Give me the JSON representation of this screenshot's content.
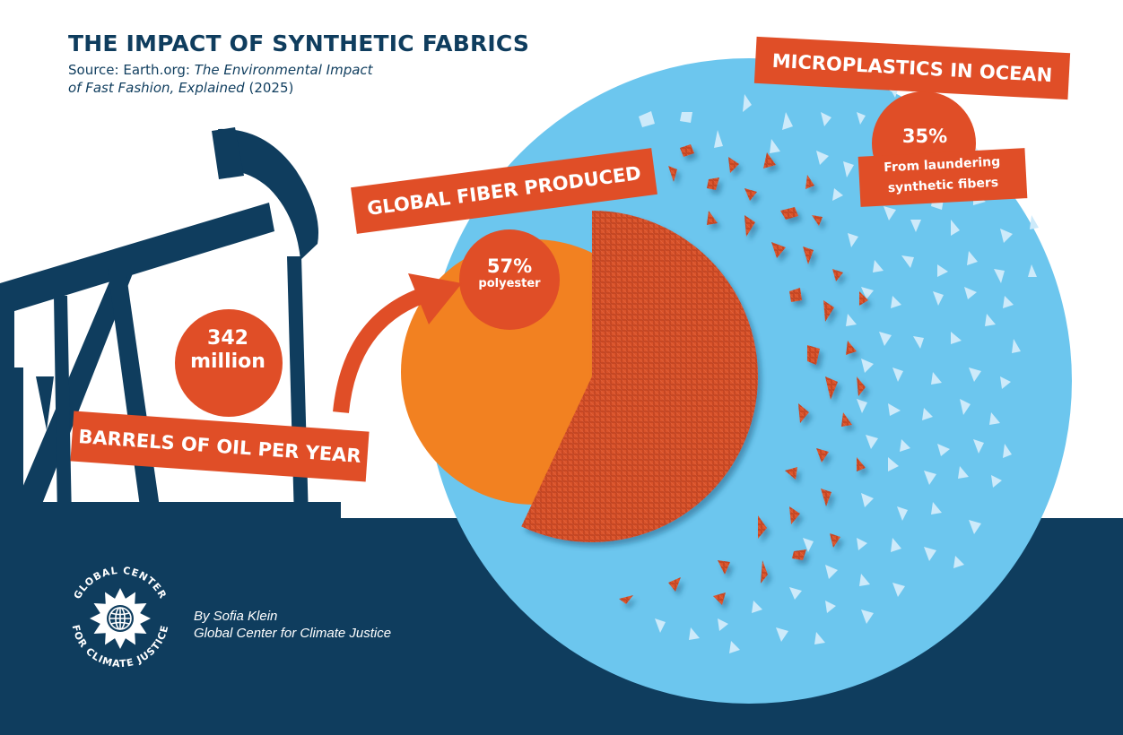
{
  "header": {
    "title": "THE IMPACT OF SYNTHETIC FABRICS",
    "source_prefix": "Source: Earth.org: ",
    "source_title_line1": "The Environmental Impact",
    "source_title_line2": "of Fast Fashion, Explained",
    "source_year": " (2025)"
  },
  "oil": {
    "value_line1": "342",
    "value_line2": "million",
    "label": "BARRELS OF OIL PER YEAR"
  },
  "fiber": {
    "label": "GLOBAL FIBER PRODUCED",
    "percent": "57%",
    "caption": "polyester",
    "share": 0.57
  },
  "ocean": {
    "label": "MICROPLASTICS IN OCEAN",
    "percent": "35%",
    "caption_line1": "From laundering",
    "caption_line2": "synthetic fibers"
  },
  "footer": {
    "logo_text_top": "GLOBAL CENTER",
    "logo_text_bottom": "FOR CLIMATE JUSTICE",
    "author": "By Sofia Klein",
    "organization": "Global Center for Climate Justice"
  },
  "colors": {
    "navy": "#0f3d5e",
    "ocean_blue": "#6cc6ee",
    "banner_red": "#e04e27",
    "orange": "#f28121",
    "fabric": "#d9532b",
    "flake": "#cdeafa"
  },
  "icons": {
    "oil_pump": "oil-pump-jack-icon",
    "arrow": "curved-arrow-icon",
    "logo": "sunflower-globe-logo"
  }
}
